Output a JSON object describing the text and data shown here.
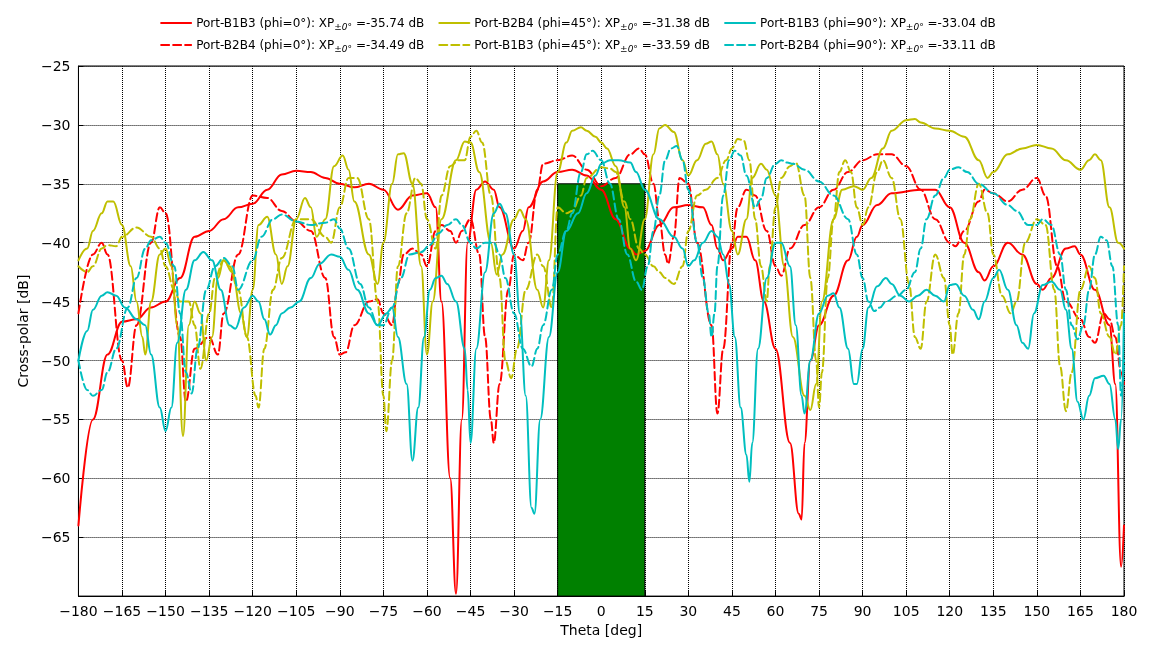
{
  "chart_data": {
    "type": "line",
    "xlabel": "Theta [deg]",
    "ylabel": "Cross-polar [dB]",
    "xlim": [
      -180,
      180
    ],
    "xticks": [
      -180,
      -165,
      -150,
      -135,
      -120,
      -105,
      -90,
      -75,
      -60,
      -45,
      -30,
      -15,
      0,
      15,
      30,
      45,
      60,
      75,
      90,
      105,
      120,
      135,
      150,
      165,
      180
    ],
    "ylim": [
      -70,
      -25
    ],
    "yticks": [
      -65,
      -60,
      -55,
      -50,
      -45,
      -40,
      -35,
      -30,
      -25
    ],
    "grid": true,
    "legend": "top",
    "marker": "none",
    "series": [
      {
        "name": "Port-B1B3 (phi=0°): XP$_{±0°}$ =-35.74 dB",
        "color": "#ff0000",
        "line_style": "solid",
        "x": [
          -180,
          -175,
          -170,
          -165,
          -160,
          -155,
          -150,
          -145,
          -140,
          -135,
          -130,
          -125,
          -120,
          -115,
          -110,
          -105,
          -100,
          -95,
          -90,
          -85,
          -80,
          -75,
          -70,
          -65,
          -60,
          -57,
          -55,
          -52,
          -50,
          -48,
          -46,
          -43,
          -40,
          -37,
          -35,
          -30,
          -27,
          -25,
          -20,
          -15,
          -10,
          -5,
          0,
          5,
          10,
          12,
          15,
          20,
          25,
          30,
          35,
          38,
          40,
          42,
          45,
          47,
          50,
          53,
          56,
          60,
          65,
          68,
          69,
          70,
          72,
          75,
          80,
          85,
          88,
          90,
          95,
          100,
          110,
          115,
          120,
          125,
          130,
          132,
          135,
          140,
          145,
          150,
          152,
          155,
          160,
          163,
          165,
          170,
          175,
          177,
          179,
          180
        ],
        "values": [
          -64,
          -55,
          -49.5,
          -46.7,
          -46.5,
          -45.5,
          -45,
          -43,
          -39.5,
          -39,
          -38,
          -37,
          -36.7,
          -35.5,
          -34.2,
          -33.9,
          -34,
          -34.5,
          -35,
          -35.3,
          -35,
          -35.5,
          -37.2,
          -36,
          -35.8,
          -37,
          -45,
          -60,
          -69.8,
          -55,
          -40,
          -35.5,
          -34.8,
          -35.5,
          -37,
          -40.5,
          -39,
          -37,
          -34.8,
          -34,
          -33.8,
          -34.3,
          -35.5,
          -38,
          -40.5,
          -41,
          -40.7,
          -38.5,
          -37,
          -36.8,
          -37,
          -38.5,
          -40.5,
          -41.5,
          -40.5,
          -39.5,
          -39.5,
          -41.5,
          -45,
          -49,
          -57,
          -63,
          -63.5,
          -57,
          -50,
          -47,
          -44.5,
          -41.5,
          -39.5,
          -38.5,
          -36.8,
          -35.8,
          -35.5,
          -35.5,
          -37,
          -40,
          -42.5,
          -43.2,
          -42,
          -40,
          -41,
          -43.5,
          -44,
          -43,
          -40.5,
          -40.3,
          -41,
          -44,
          -47,
          -52,
          -67.5,
          -64
        ]
      },
      {
        "name": "Port-B2B4 (phi=0°): XP$_{±0°}$ =-34.49 dB",
        "color": "#ff0000",
        "line_style": "dashed",
        "x": [
          -180,
          -175,
          -172,
          -170,
          -165,
          -163,
          -160,
          -155,
          -152,
          -150,
          -145,
          -143,
          -140,
          -135,
          -132,
          -130,
          -125,
          -120,
          -115,
          -110,
          -105,
          -100,
          -95,
          -92,
          -90,
          -88,
          -85,
          -80,
          -77,
          -75,
          -72,
          -70,
          -68,
          -65,
          -62,
          -60,
          -57,
          -55,
          -52,
          -50,
          -48,
          -45,
          -42,
          -40,
          -38,
          -37,
          -35,
          -32,
          -30,
          -27,
          -25,
          -22,
          -20,
          -15,
          -10,
          -5,
          0,
          5,
          10,
          13,
          15,
          18,
          20,
          22,
          23,
          25,
          27,
          30,
          33,
          38,
          40,
          42,
          45,
          47,
          50,
          53,
          57,
          60,
          62,
          65,
          70,
          75,
          80,
          85,
          90,
          95,
          100,
          105,
          110,
          115,
          120,
          122,
          125,
          130,
          132,
          135,
          140,
          145,
          150,
          153,
          157,
          160,
          165,
          168,
          170,
          173,
          175,
          177,
          179,
          180
        ],
        "values": [
          -46,
          -41,
          -40,
          -41,
          -50,
          -52.3,
          -47,
          -40,
          -37,
          -37.5,
          -48,
          -53.5,
          -49,
          -48,
          -49.5,
          -46,
          -41,
          -36,
          -36.2,
          -37.3,
          -38.2,
          -39,
          -43,
          -48,
          -49.5,
          -49.3,
          -47,
          -45,
          -44.8,
          -46,
          -47,
          -43.5,
          -41,
          -40.5,
          -41,
          -42,
          -39,
          -38.5,
          -39,
          -40,
          -39,
          -38,
          -41,
          -48,
          -55,
          -57,
          -52,
          -44,
          -41,
          -41.5,
          -40,
          -35.5,
          -33.3,
          -33,
          -32.6,
          -33.8,
          -35.2,
          -34.5,
          -32.5,
          -32,
          -32.5,
          -35,
          -38,
          -41,
          -41.8,
          -39.5,
          -34.5,
          -35,
          -40,
          -47,
          -54.5,
          -49,
          -40,
          -37,
          -35.5,
          -36,
          -39,
          -42,
          -42.8,
          -40.5,
          -38.5,
          -37,
          -35.5,
          -34,
          -33,
          -32.5,
          -32.5,
          -33.5,
          -35.5,
          -38,
          -40,
          -40.3,
          -39,
          -36.5,
          -35.5,
          -35.8,
          -36.5,
          -35.5,
          -34.5,
          -36,
          -42,
          -45,
          -46.5,
          -48,
          -48.5,
          -46,
          -46.5,
          -48,
          -51,
          -52
        ]
      },
      {
        "name": "Port-B2B4 (phi=45°): XP$_{±0°}$ =-31.38 dB",
        "color": "#bfbf00",
        "line_style": "solid",
        "x": [
          -180,
          -177,
          -175,
          -172,
          -170,
          -168,
          -165,
          -162,
          -160,
          -158,
          -157,
          -155,
          -152,
          -150,
          -148,
          -146,
          -144,
          -142,
          -140,
          -138,
          -136,
          -134,
          -132,
          -130,
          -127,
          -124,
          -122,
          -120,
          -118,
          -115,
          -112,
          -110,
          -108,
          -105,
          -102,
          -100,
          -98,
          -95,
          -92,
          -89,
          -87,
          -85,
          -80,
          -77,
          -75,
          -72,
          -70,
          -68,
          -65,
          -62,
          -60,
          -58,
          -55,
          -50,
          -47,
          -45,
          -42,
          -38,
          -36,
          -34,
          -30,
          -28,
          -26,
          -22,
          -20,
          -18,
          -15,
          -12,
          -10,
          -7,
          -5,
          -2,
          0,
          2,
          5,
          8,
          10,
          12,
          15,
          18,
          20,
          22,
          25,
          28,
          30,
          33,
          36,
          38,
          40,
          42,
          45,
          47,
          50,
          52,
          55,
          57,
          60,
          63,
          66,
          70,
          72,
          74,
          76,
          80,
          83,
          87,
          90,
          93,
          97,
          100,
          105,
          108,
          110,
          115,
          120,
          125,
          130,
          133,
          135,
          140,
          145,
          150,
          155,
          160,
          165,
          168,
          170,
          172,
          175,
          178,
          180
        ],
        "values": [
          -41.5,
          -40.5,
          -39,
          -37.5,
          -36.5,
          -36.5,
          -38.5,
          -42,
          -45,
          -48,
          -49.5,
          -45,
          -41,
          -40.5,
          -42,
          -47,
          -56.4,
          -47,
          -45,
          -46,
          -50,
          -48,
          -43,
          -41.5,
          -42.5,
          -46,
          -48,
          -44,
          -38.5,
          -37.8,
          -41,
          -43.5,
          -42,
          -38,
          -36.2,
          -37,
          -39.5,
          -38,
          -33.5,
          -32.6,
          -33.8,
          -36.5,
          -41,
          -43.5,
          -40,
          -35,
          -32.5,
          -32.4,
          -35,
          -42,
          -49.5,
          -45,
          -38,
          -33,
          -31.4,
          -31.5,
          -34,
          -40,
          -42.7,
          -41,
          -38,
          -37.2,
          -38,
          -44,
          -45.5,
          -41.5,
          -34,
          -31.5,
          -30.5,
          -30.2,
          -30.5,
          -31,
          -31.5,
          -32,
          -33.5,
          -37,
          -40.5,
          -41.5,
          -38,
          -32.5,
          -30.3,
          -30,
          -30.6,
          -33,
          -34.3,
          -33,
          -31.6,
          -31.4,
          -32.5,
          -35,
          -39,
          -41,
          -38,
          -34.5,
          -33.3,
          -33.8,
          -36,
          -42,
          -48,
          -53,
          -54.2,
          -52,
          -45,
          -38,
          -35.5,
          -35.2,
          -35.5,
          -34.5,
          -32,
          -30.5,
          -29.6,
          -29.5,
          -29.8,
          -30.3,
          -30.5,
          -31,
          -33,
          -34.5,
          -34,
          -32.5,
          -32,
          -31.7,
          -32,
          -33,
          -33.8,
          -33,
          -32.5,
          -33,
          -37,
          -40,
          -40.5
        ]
      },
      {
        "name": "Port-B1B3 (phi=45°): XP$_{±0°}$ =-33.59 dB",
        "color": "#bfbf00",
        "line_style": "dashed",
        "x": [
          -180,
          -177,
          -175,
          -172,
          -170,
          -167,
          -165,
          -160,
          -155,
          -152,
          -150,
          -147,
          -145,
          -142,
          -140,
          -138,
          -135,
          -133,
          -130,
          -128,
          -125,
          -122,
          -119,
          -118,
          -116,
          -113,
          -110,
          -105,
          -100,
          -95,
          -93,
          -90,
          -87,
          -84,
          -80,
          -77,
          -75,
          -74,
          -72,
          -70,
          -67,
          -64,
          -62,
          -60,
          -57,
          -55,
          -52,
          -49,
          -47,
          -45,
          -43,
          -41,
          -38,
          -35,
          -33,
          -31,
          -29,
          -26,
          -22,
          -20,
          -17,
          -15,
          -12,
          -10,
          -7,
          -5,
          0,
          3,
          5,
          8,
          10,
          13,
          15,
          18,
          20,
          22,
          25,
          28,
          30,
          33,
          36,
          40,
          43,
          45,
          47,
          49,
          51,
          53,
          55,
          57,
          58,
          60,
          62,
          65,
          67,
          70,
          72,
          74,
          75,
          76,
          78,
          80,
          82,
          84,
          86,
          88,
          90,
          92,
          95,
          97,
          100,
          103,
          106,
          108,
          110,
          112,
          115,
          118,
          120,
          121,
          123,
          125,
          127,
          130,
          133,
          135,
          138,
          141,
          143,
          146,
          150,
          153,
          156,
          158,
          160,
          162,
          165,
          168,
          170,
          172,
          175,
          177,
          179,
          180
        ],
        "values": [
          -42,
          -42.5,
          -42,
          -40.5,
          -40.2,
          -40.3,
          -39.5,
          -38.7,
          -39.5,
          -40.5,
          -42,
          -44,
          -45,
          -45,
          -47,
          -50.7,
          -46,
          -43,
          -41.5,
          -42,
          -44,
          -48,
          -53,
          -54,
          -49,
          -44,
          -41.3,
          -38,
          -38,
          -39.5,
          -40,
          -37,
          -34.5,
          -34.5,
          -38,
          -45,
          -53,
          -56,
          -50,
          -42,
          -37.5,
          -34.5,
          -35,
          -38,
          -40.5,
          -36,
          -33.5,
          -33,
          -33,
          -31,
          -30.5,
          -31.5,
          -36,
          -43,
          -50,
          -51.5,
          -49,
          -44,
          -41,
          -42,
          -45.5,
          -37,
          -37.5,
          -37.3,
          -36,
          -34.5,
          -33.6,
          -33.7,
          -34,
          -36.5,
          -38,
          -40.5,
          -41,
          -42,
          -42.5,
          -43,
          -43.5,
          -42,
          -39,
          -36,
          -35.5,
          -34.5,
          -33,
          -32,
          -31.2,
          -31.3,
          -33,
          -38,
          -42,
          -45,
          -42,
          -37,
          -34.5,
          -33.5,
          -33.2,
          -36,
          -43,
          -50,
          -54,
          -51,
          -43,
          -38,
          -34,
          -33,
          -34,
          -37,
          -38.5,
          -37,
          -34,
          -33,
          -34.5,
          -38,
          -43.5,
          -48,
          -49,
          -45,
          -41,
          -43,
          -47,
          -49.5,
          -46,
          -41,
          -38,
          -35,
          -37.5,
          -41,
          -44.5,
          -46,
          -45,
          -40,
          -38,
          -38.5,
          -44,
          -50.5,
          -54.3,
          -51,
          -44,
          -42,
          -43,
          -46,
          -48,
          -49.5,
          -47,
          -42
        ]
      },
      {
        "name": "Port-B1B3 (phi=90°): XP$_{±0°}$ =-33.04 dB",
        "color": "#00bfbf",
        "line_style": "solid",
        "x": [
          -180,
          -177,
          -175,
          -172,
          -170,
          -167,
          -164,
          -160,
          -157,
          -155,
          -152,
          -150,
          -148,
          -146,
          -143,
          -140,
          -137,
          -134,
          -131,
          -128,
          -126,
          -123,
          -120,
          -118,
          -116,
          -114,
          -112,
          -110,
          -107,
          -104,
          -100,
          -97,
          -93,
          -90,
          -87,
          -84,
          -80,
          -77,
          -74,
          -72,
          -70,
          -67,
          -65,
          -63,
          -61,
          -59,
          -57,
          -55,
          -53,
          -50,
          -47,
          -46,
          -45,
          -43,
          -40,
          -37,
          -35,
          -33,
          -30,
          -28,
          -26,
          -24,
          -23,
          -21,
          -18,
          -15,
          -12,
          -8,
          -5,
          -2,
          0,
          3,
          6,
          10,
          12,
          15,
          20,
          25,
          28,
          30,
          32,
          35,
          38,
          40,
          42,
          44,
          46,
          48,
          50,
          51,
          52,
          54,
          57,
          60,
          62,
          65,
          67,
          69,
          70,
          72,
          75,
          78,
          80,
          82,
          85,
          87,
          88,
          90,
          92,
          95,
          98,
          100,
          103,
          106,
          109,
          112,
          115,
          118,
          120,
          122,
          125,
          128,
          130,
          132,
          135,
          137,
          140,
          143,
          145,
          147,
          149,
          152,
          155,
          158,
          160,
          162,
          164,
          166,
          168,
          170,
          173,
          175,
          177,
          178,
          179,
          180
        ],
        "values": [
          -50,
          -47.5,
          -45.7,
          -44.5,
          -44.2,
          -44.5,
          -45.5,
          -46.5,
          -47,
          -49.5,
          -54,
          -56,
          -54,
          -48.5,
          -44,
          -41.5,
          -40.8,
          -41.5,
          -44,
          -47,
          -47.3,
          -45.5,
          -44.5,
          -45,
          -46.5,
          -47.8,
          -47,
          -46,
          -45.5,
          -45,
          -43,
          -41.8,
          -41,
          -41.2,
          -42.3,
          -44,
          -46,
          -47,
          -46,
          -45.5,
          -48,
          -52,
          -58.5,
          -54,
          -48,
          -44,
          -43,
          -42.8,
          -43.5,
          -45,
          -49,
          -52.5,
          -57,
          -49,
          -42.5,
          -37.5,
          -36.7,
          -37.5,
          -41,
          -46,
          -53,
          -62.5,
          -63,
          -55,
          -48,
          -42.5,
          -39,
          -37.5,
          -35.8,
          -34.3,
          -33.3,
          -33,
          -33,
          -33.2,
          -34,
          -35.5,
          -38,
          -39.5,
          -40.5,
          -42,
          -41.5,
          -40,
          -39,
          -39.5,
          -41,
          -43.5,
          -48,
          -54,
          -58,
          -60.3,
          -57,
          -49,
          -43,
          -40,
          -40,
          -42,
          -47,
          -53,
          -54.5,
          -50,
          -46,
          -44.5,
          -44.3,
          -45.5,
          -49,
          -52,
          -52,
          -49,
          -45.5,
          -43.7,
          -43,
          -43.5,
          -44.5,
          -45,
          -44.5,
          -44,
          -44.5,
          -45,
          -43.6,
          -43.5,
          -44.5,
          -45.7,
          -46.5,
          -45,
          -43,
          -42.3,
          -44,
          -47,
          -48.5,
          -49,
          -46,
          -43.6,
          -43.3,
          -44,
          -45.7,
          -49,
          -53.5,
          -55,
          -53,
          -51.5,
          -51.3,
          -52,
          -55,
          -57.5,
          -55,
          -46
        ]
      },
      {
        "name": "Port-B2B4 (phi=90°): XP$_{±0°}$ =-33.11 dB",
        "color": "#00bfbf",
        "line_style": "dashed",
        "x": [
          -180,
          -177,
          -175,
          -172,
          -170,
          -167,
          -163,
          -160,
          -157,
          -155,
          -152,
          -150,
          -147,
          -145,
          -143,
          -141,
          -139,
          -136,
          -133,
          -130,
          -127,
          -125,
          -120,
          -117,
          -113,
          -110,
          -105,
          -100,
          -95,
          -92,
          -90,
          -87,
          -83,
          -80,
          -77,
          -75,
          -72,
          -69,
          -66,
          -62,
          -59,
          -56,
          -53,
          -50,
          -48,
          -45,
          -43,
          -40,
          -37,
          -35,
          -33,
          -30,
          -27,
          -24,
          -22,
          -20,
          -17,
          -15,
          -12,
          -10,
          -7,
          -5,
          -3,
          0,
          3,
          6,
          9,
          12,
          14,
          16,
          18,
          20,
          22,
          24,
          26,
          28,
          30,
          33,
          35,
          37,
          38,
          39,
          40,
          42,
          44,
          46,
          48,
          50,
          53,
          55,
          57,
          60,
          62,
          64,
          66,
          70,
          75,
          80,
          85,
          88,
          90,
          92,
          94,
          96,
          98,
          102,
          105,
          108,
          110,
          112,
          115,
          118,
          120,
          123,
          126,
          130,
          135,
          140,
          143,
          147,
          150,
          152,
          155,
          158,
          160,
          162,
          164,
          166,
          168,
          170,
          172,
          174,
          176,
          178,
          179,
          180
        ],
        "values": [
          -50,
          -52.5,
          -53,
          -52.5,
          -51,
          -49,
          -45.5,
          -43,
          -40.5,
          -39.8,
          -39.5,
          -40,
          -42,
          -46,
          -51,
          -52.8,
          -49,
          -44,
          -42,
          -41.3,
          -42,
          -44,
          -41.5,
          -39.5,
          -38,
          -37.6,
          -38.2,
          -38.5,
          -38.3,
          -38,
          -38.8,
          -40.5,
          -43.5,
          -45.5,
          -47,
          -47,
          -45.5,
          -43,
          -41,
          -40.8,
          -40.2,
          -39.2,
          -38.5,
          -38,
          -38.5,
          -40,
          -40.5,
          -40,
          -40,
          -41,
          -43,
          -46,
          -49,
          -50.5,
          -49,
          -47,
          -44,
          -41,
          -39,
          -37.5,
          -34,
          -32.5,
          -32.2,
          -33,
          -35,
          -38,
          -41,
          -43.3,
          -44,
          -42,
          -39,
          -36,
          -33,
          -32,
          -31.8,
          -33,
          -35.5,
          -40,
          -43,
          -46,
          -48,
          -46,
          -42,
          -36,
          -33,
          -32.2,
          -32.6,
          -34.3,
          -37,
          -36.3,
          -34.5,
          -33.3,
          -33,
          -33.2,
          -33.3,
          -33.8,
          -34.8,
          -36,
          -38,
          -41,
          -43,
          -45,
          -45.8,
          -45.5,
          -45,
          -44.5,
          -44,
          -42.5,
          -40.5,
          -38,
          -36,
          -34.5,
          -33.8,
          -33.6,
          -34,
          -35,
          -35.8,
          -36.8,
          -37.3,
          -38.5,
          -38.5,
          -38,
          -38.5,
          -41,
          -44,
          -47,
          -48.2,
          -47,
          -44,
          -41,
          -39.5,
          -39.8,
          -42,
          -47,
          -53,
          -50
        ]
      },
      {
        "type": "bar",
        "color": "#008000",
        "x": [
          0
        ],
        "base": [
          -70
        ],
        "values": [
          35
        ]
      }
    ]
  }
}
